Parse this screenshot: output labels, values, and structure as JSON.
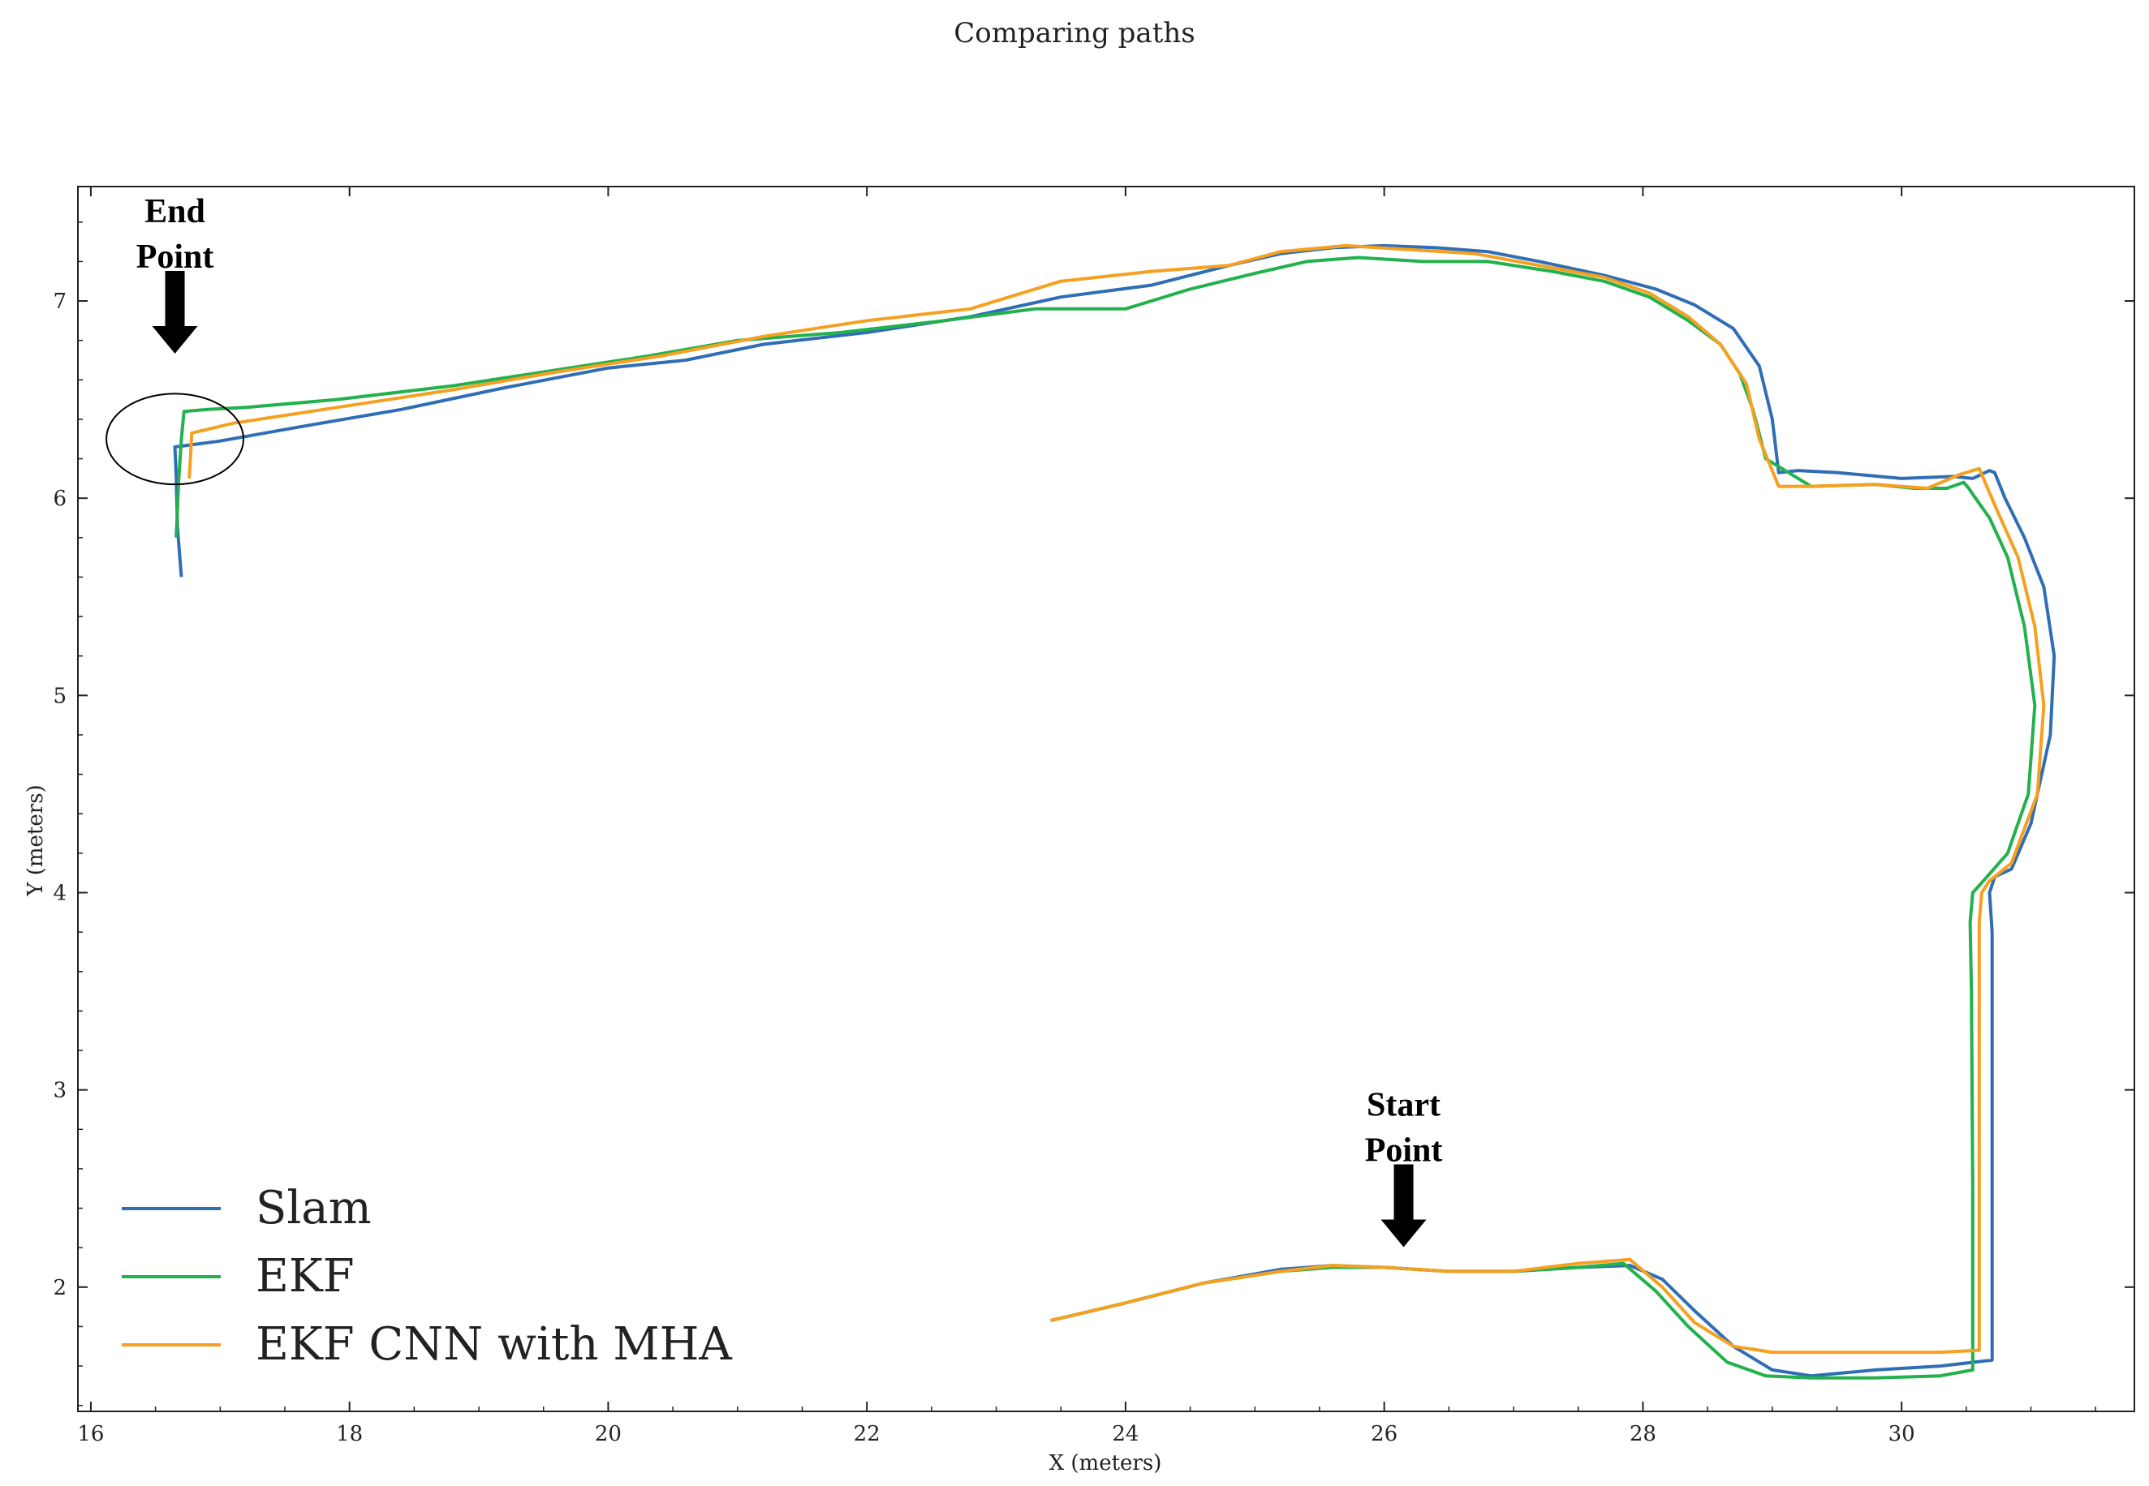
{
  "chart_data": {
    "type": "line",
    "title": "Comparing paths",
    "xlabel": "X (meters)",
    "ylabel": "Y (meters)",
    "xlim": [
      15.9,
      31.8
    ],
    "ylim": [
      1.37,
      7.58
    ],
    "xticks": [
      "16",
      "18",
      "20",
      "22",
      "24",
      "26",
      "28",
      "30"
    ],
    "yticks": [
      "2",
      "3",
      "4",
      "5",
      "6",
      "7"
    ],
    "grid": false,
    "legend_position": "bottom-left",
    "annotations": [
      {
        "lines": [
          "End",
          "Point"
        ],
        "x": 16.65,
        "y": 6.7
      },
      {
        "lines": [
          "Start",
          "Point"
        ],
        "x": 26.15,
        "y": 2.17
      }
    ],
    "end_marker": {
      "type": "ellipse",
      "cx": 16.65,
      "cy": 6.3,
      "rx": 0.53,
      "ry": 0.23
    },
    "series": [
      {
        "name": "Slam",
        "color": "#2f6eb5",
        "x": [
          23.42,
          24.0,
          24.6,
          25.2,
          25.6,
          26.0,
          26.5,
          27.0,
          27.5,
          27.9,
          28.15,
          28.4,
          28.7,
          29.0,
          29.3,
          29.8,
          30.3,
          30.7,
          30.7,
          30.7,
          30.7,
          30.68,
          30.72,
          30.85,
          31.0,
          31.15,
          31.18,
          31.1,
          30.95,
          30.8,
          30.72,
          30.68,
          30.55,
          30.4,
          30.0,
          29.5,
          29.2,
          29.05,
          29.0,
          28.9,
          28.7,
          28.4,
          28.1,
          27.7,
          27.2,
          26.8,
          26.4,
          26.0,
          25.6,
          25.2,
          24.8,
          24.2,
          23.5,
          22.8,
          22.0,
          21.2,
          20.6,
          20.0,
          19.2,
          18.4,
          17.6,
          17.0,
          16.65,
          16.66,
          16.67,
          16.7
        ],
        "y": [
          1.83,
          1.92,
          2.02,
          2.09,
          2.11,
          2.1,
          2.08,
          2.08,
          2.1,
          2.11,
          2.04,
          1.88,
          1.7,
          1.58,
          1.55,
          1.58,
          1.6,
          1.63,
          2.5,
          3.5,
          3.8,
          4.0,
          4.08,
          4.12,
          4.35,
          4.8,
          5.2,
          5.55,
          5.8,
          6.0,
          6.13,
          6.14,
          6.1,
          6.11,
          6.1,
          6.13,
          6.14,
          6.13,
          6.4,
          6.67,
          6.86,
          6.98,
          7.06,
          7.13,
          7.2,
          7.25,
          7.27,
          7.28,
          7.27,
          7.24,
          7.18,
          7.08,
          7.02,
          6.92,
          6.84,
          6.78,
          6.7,
          6.66,
          6.56,
          6.45,
          6.36,
          6.29,
          6.26,
          6.12,
          5.85,
          5.6
        ]
      },
      {
        "name": "EKF",
        "color": "#22b14c",
        "x": [
          23.42,
          24.0,
          24.6,
          25.2,
          25.6,
          26.0,
          26.5,
          27.0,
          27.5,
          27.85,
          28.1,
          28.35,
          28.65,
          28.95,
          29.3,
          29.8,
          30.3,
          30.55,
          30.55,
          30.54,
          30.53,
          30.55,
          30.62,
          30.82,
          30.98,
          31.03,
          30.95,
          30.82,
          30.68,
          30.55,
          30.52,
          30.48,
          30.35,
          30.1,
          29.8,
          29.3,
          28.95,
          28.85,
          28.75,
          28.6,
          28.35,
          28.05,
          27.7,
          27.3,
          26.8,
          26.3,
          25.8,
          25.4,
          25.0,
          24.5,
          24.0,
          23.3,
          22.6,
          21.8,
          21.0,
          20.3,
          19.6,
          18.8,
          17.9,
          17.2,
          16.9,
          16.72,
          16.7,
          16.68,
          16.66
        ],
        "y": [
          1.83,
          1.92,
          2.02,
          2.08,
          2.1,
          2.1,
          2.08,
          2.08,
          2.1,
          2.12,
          1.98,
          1.8,
          1.62,
          1.55,
          1.54,
          1.54,
          1.55,
          1.58,
          2.5,
          3.5,
          3.85,
          4.0,
          4.05,
          4.2,
          4.5,
          4.95,
          5.35,
          5.7,
          5.9,
          6.02,
          6.05,
          6.08,
          6.05,
          6.05,
          6.07,
          6.06,
          6.2,
          6.45,
          6.63,
          6.78,
          6.9,
          7.02,
          7.1,
          7.15,
          7.2,
          7.2,
          7.22,
          7.2,
          7.14,
          7.06,
          6.96,
          6.96,
          6.9,
          6.84,
          6.8,
          6.72,
          6.65,
          6.57,
          6.5,
          6.46,
          6.45,
          6.44,
          6.3,
          6.1,
          5.8
        ]
      },
      {
        "name": "EKF CNN with MHA",
        "color": "#f5a020",
        "x": [
          23.42,
          24.0,
          24.6,
          25.2,
          25.6,
          26.0,
          26.5,
          27.0,
          27.5,
          27.9,
          28.15,
          28.4,
          28.7,
          29.0,
          29.3,
          29.8,
          30.3,
          30.6,
          30.6,
          30.6,
          30.6,
          30.62,
          30.68,
          30.85,
          31.05,
          31.1,
          31.03,
          30.9,
          30.73,
          30.6,
          30.45,
          30.2,
          29.8,
          29.3,
          29.05,
          28.9,
          28.8,
          28.6,
          28.35,
          28.05,
          27.7,
          27.2,
          26.7,
          26.2,
          25.7,
          25.2,
          24.8,
          24.2,
          23.5,
          22.8,
          22.0,
          21.2,
          20.4,
          19.6,
          18.8,
          17.8,
          17.1,
          16.78,
          16.77,
          16.76
        ],
        "y": [
          1.83,
          1.92,
          2.02,
          2.08,
          2.11,
          2.1,
          2.08,
          2.08,
          2.12,
          2.14,
          2.0,
          1.82,
          1.7,
          1.67,
          1.67,
          1.67,
          1.67,
          1.68,
          2.5,
          3.5,
          3.85,
          4.0,
          4.06,
          4.15,
          4.5,
          4.95,
          5.35,
          5.7,
          5.95,
          6.15,
          6.12,
          6.05,
          6.07,
          6.06,
          6.06,
          6.3,
          6.58,
          6.78,
          6.92,
          7.04,
          7.12,
          7.18,
          7.24,
          7.26,
          7.28,
          7.25,
          7.18,
          7.15,
          7.1,
          6.96,
          6.9,
          6.82,
          6.72,
          6.64,
          6.55,
          6.45,
          6.38,
          6.33,
          6.2,
          6.1
        ]
      }
    ]
  }
}
